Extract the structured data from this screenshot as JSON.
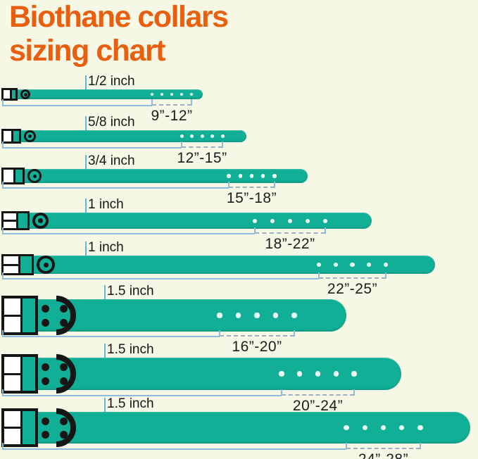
{
  "title": {
    "line1": "Biothane collars",
    "line2": "sizing chart"
  },
  "rows": [
    {
      "width_label": "1/2 inch",
      "size_range": "9”-12”"
    },
    {
      "width_label": "5/8 inch",
      "size_range": "12”-15”"
    },
    {
      "width_label": "3/4 inch",
      "size_range": "15”-18”"
    },
    {
      "width_label": "1 inch",
      "size_range": "18”-22”"
    },
    {
      "width_label": "1 inch",
      "size_range": "22”-25”"
    },
    {
      "width_label": "1.5 inch",
      "size_range": "16”-20”"
    },
    {
      "width_label": "1.5 inch",
      "size_range": "20”-24”"
    },
    {
      "width_label": "1.5 inch",
      "size_range": "24”-28”"
    }
  ],
  "holes_per_collar": 5,
  "colors": {
    "background": "#F7F7E5",
    "title_orange": "#E8600F",
    "strap_teal": "#12AF97",
    "buckle_black": "#161616",
    "measure_blue": "#8CBCDC",
    "hole_white": "#EAFBF4"
  }
}
